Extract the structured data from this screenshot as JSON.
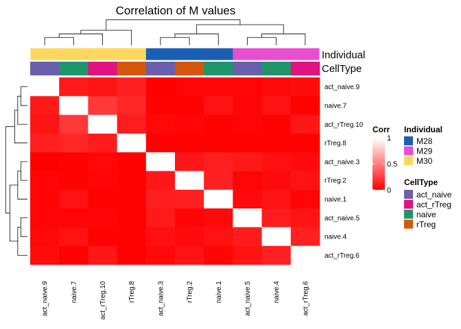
{
  "chart_data": {
    "type": "heatmap",
    "title": "Correlation of M values",
    "samples": [
      "act_naive.9",
      "naive.7",
      "act_rTreg.10",
      "rTreg.8",
      "act_naive.3",
      "rTreg.2",
      "naive.1",
      "act_naive.5",
      "naive.4",
      "act_rTreg.6"
    ],
    "individual": [
      "M30",
      "M30",
      "M30",
      "M30",
      "M28",
      "M28",
      "M28",
      "M29",
      "M29",
      "M29"
    ],
    "celltype": [
      "act_naive",
      "naive",
      "act_rTreg",
      "rTreg",
      "act_naive",
      "rTreg",
      "naive",
      "act_naive",
      "naive",
      "act_rTreg"
    ],
    "matrix": [
      [
        1.0,
        0.1,
        0.08,
        0.13,
        0.0,
        0.02,
        0.02,
        0.02,
        0.03,
        0.05
      ],
      [
        0.1,
        1.0,
        0.22,
        0.15,
        0.01,
        0.01,
        0.07,
        0.02,
        0.07,
        0.01
      ],
      [
        0.08,
        0.22,
        1.0,
        0.11,
        0.03,
        0.02,
        0.01,
        0.02,
        0.01,
        0.09
      ],
      [
        0.13,
        0.15,
        0.11,
        1.0,
        0.01,
        0.01,
        0.01,
        0.01,
        0.01,
        0.01
      ],
      [
        0.0,
        0.01,
        0.03,
        0.01,
        1.0,
        0.09,
        0.12,
        0.1,
        0.06,
        0.04
      ],
      [
        0.02,
        0.01,
        0.02,
        0.01,
        0.09,
        1.0,
        0.13,
        0.02,
        0.04,
        0.07
      ],
      [
        0.02,
        0.07,
        0.01,
        0.01,
        0.12,
        0.13,
        1.0,
        0.04,
        0.07,
        0.02
      ],
      [
        0.02,
        0.02,
        0.02,
        0.01,
        0.1,
        0.02,
        0.04,
        1.0,
        0.11,
        0.08
      ],
      [
        0.03,
        0.07,
        0.01,
        0.01,
        0.06,
        0.04,
        0.07,
        0.11,
        1.0,
        0.13
      ],
      [
        0.05,
        0.01,
        0.09,
        0.01,
        0.04,
        0.07,
        0.02,
        0.08,
        0.13,
        1.0
      ]
    ],
    "color_scale": {
      "low": "#ff0000",
      "high": "#ffffff",
      "range": [
        0,
        1
      ],
      "ticks": [
        "0",
        "0.5",
        "1"
      ]
    },
    "annotation_tracks": [
      "Individual",
      "CellType"
    ],
    "legends": {
      "corr": {
        "title": "Corr"
      },
      "individual": {
        "title": "Individual",
        "items": [
          {
            "label": "M28",
            "color": "#1a5fb4"
          },
          {
            "label": "M29",
            "color": "#e94dd0"
          },
          {
            "label": "M30",
            "color": "#fdd85d"
          }
        ]
      },
      "celltype": {
        "title": "CellType",
        "items": [
          {
            "label": "act_naive",
            "color": "#6a5fac"
          },
          {
            "label": "act_rTreg",
            "color": "#e0137f"
          },
          {
            "label": "naive",
            "color": "#20956a"
          },
          {
            "label": "rTreg",
            "color": "#d4560e"
          }
        ]
      }
    },
    "dendrogram": {
      "clusters": [
        [
          "act_naive.9",
          "naive.7",
          "act_rTreg.10",
          "rTreg.8"
        ],
        [
          "act_naive.3",
          "rTreg.2",
          "naive.1"
        ],
        [
          "act_naive.5",
          "naive.4",
          "act_rTreg.6"
        ]
      ]
    }
  }
}
